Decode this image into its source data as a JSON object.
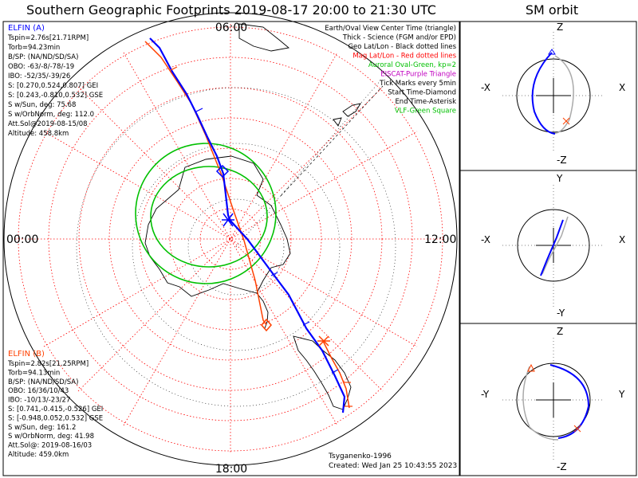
{
  "main": {
    "title": "Southern Geographic Footprints 2019-08-17 20:00 to 21:30 UTC",
    "time_labels": {
      "top": "06:00",
      "left": "00:00",
      "right": "12:00",
      "bottom": "18:00"
    }
  },
  "legend": {
    "lines": [
      {
        "text": "Earth/Oval View Center Time (triangle)",
        "color": "#000000"
      },
      {
        "text": "Thick - Science (FGM and/or EPD)",
        "color": "#000000"
      },
      {
        "text": "Geo Lat/Lon - Black dotted lines",
        "color": "#000000"
      },
      {
        "text": "Mag Lat/Lon - Red dotted lines",
        "color": "#ff0000"
      },
      {
        "text": "Auroral Oval-Green, kp=2",
        "color": "#00c000"
      },
      {
        "text": "EISCAT-Purple Triangle",
        "color": "#c000c0"
      },
      {
        "text": "Tick Marks every 5min",
        "color": "#000000"
      },
      {
        "text": "Start Time-Diamond",
        "color": "#000000"
      },
      {
        "text": "End Time-Asterisk",
        "color": "#000000"
      },
      {
        "text": "VLF-Green Square",
        "color": "#00c000"
      }
    ]
  },
  "elfin_a": {
    "name": "ELFIN (A)",
    "color": "#0000ff",
    "lines": [
      "Tspin=2.76s[21.71RPM]",
      "Torb=94.23min",
      "B/SP: (NA/ND/SD/SA)",
      "OBO: -63/-8/-78/-19",
      "IBO: -52/35/-39/26",
      "S: [0.270,0.524,0.807] GEI",
      "S: [0.243,-0.810,0.532] GSE",
      "S w/Sun, deg: 75.68",
      "S w/OrbNorm, deg: 112.0",
      "Att.Sol@2019-08-15/08",
      "Altitude: 458.8km"
    ]
  },
  "elfin_b": {
    "name": "ELFIN (B)",
    "color": "#ff4000",
    "lines": [
      "Tspin=2.82s[21.25RPM]",
      "Torb=94.13min",
      "B/SP: (NA/ND/SD/SA)",
      "OBO: 16/36/10/43",
      "IBO: -10/13/-23/27",
      "S: [0.741,-0.415,-0.526] GEI",
      "S: [-0.948,0.052,0.532] GSE",
      "S w/Sun, deg: 161.2",
      "S w/OrbNorm, deg: 41.98",
      "Att.Sol@: 2019-08-16/03",
      "Altitude: 459.0km"
    ]
  },
  "credits": {
    "author": "Tsyganenko-1996",
    "created": "Created: Wed Jan 25 10:43:55 2023"
  },
  "sm_orbit": {
    "title": "SM orbit",
    "panel1": {
      "top": "Z",
      "bottom": "-Z",
      "left": "-X",
      "right": "X"
    },
    "panel2": {
      "top": "Y",
      "bottom": "-Y",
      "left": "-X",
      "right": "X"
    },
    "panel3": {
      "top": "Z",
      "bottom": "-Z",
      "left": "-Y",
      "right": "Y"
    }
  },
  "colors": {
    "elfin_a": "#0000ff",
    "elfin_b": "#ff4000",
    "geo_grid": "#000000",
    "mag_grid": "#ff0000",
    "auroral_oval": "#00c000",
    "orbit_trace": "#aaaaaa"
  }
}
